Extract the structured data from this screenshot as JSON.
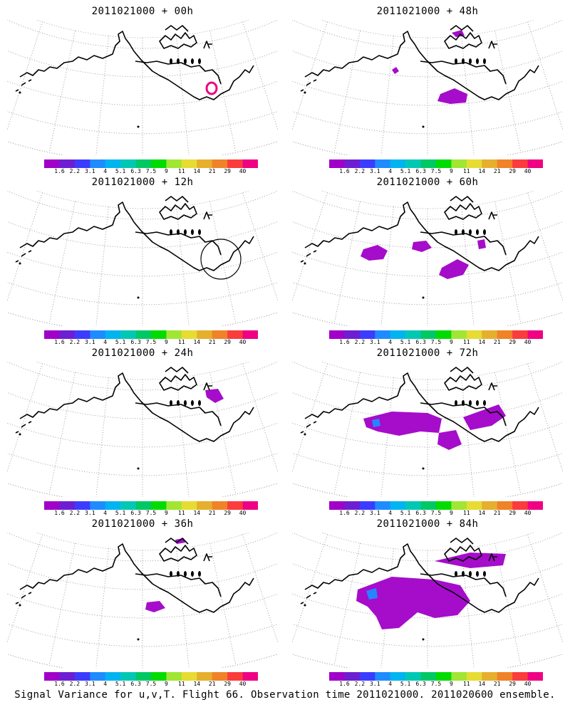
{
  "panels": [
    {
      "title": "2011021000 + 00h",
      "lead": "00h"
    },
    {
      "title": "2011021000 + 48h",
      "lead": "48h"
    },
    {
      "title": "2011021000 + 12h",
      "lead": "12h"
    },
    {
      "title": "2011021000 + 60h",
      "lead": "60h"
    },
    {
      "title": "2011021000 + 24h",
      "lead": "24h"
    },
    {
      "title": "2011021000 + 72h",
      "lead": "72h"
    },
    {
      "title": "2011021000 + 36h",
      "lead": "36h"
    },
    {
      "title": "2011021000 + 84h",
      "lead": "84h"
    }
  ],
  "colorbar": {
    "labels": [
      "1.6",
      "2.2",
      "3.1",
      "4",
      "5.1",
      "6.3",
      "7.5",
      "9",
      "11",
      "14",
      "21",
      "29",
      "40"
    ],
    "colors": [
      "#a000c8",
      "#6e1ed2",
      "#3c3cff",
      "#1e8cff",
      "#00b4f0",
      "#00c8b4",
      "#00c864",
      "#00dc00",
      "#a0e632",
      "#e6dc32",
      "#e6af2d",
      "#f08228",
      "#fa3c3c",
      "#f00082"
    ]
  },
  "caption": "Signal Variance for u,v,T. Flight 66. Observation time 2011021000. 2011020600 ensemble."
}
